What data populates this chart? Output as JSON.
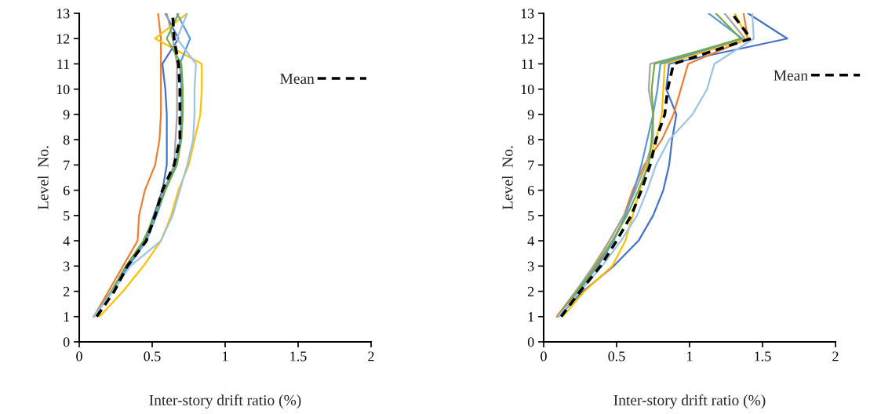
{
  "chart_data": [
    {
      "type": "line",
      "xlabel": "Inter-story drift ratio (%)",
      "ylabel": "Level  No.",
      "xlim": [
        0,
        2
      ],
      "xticks": [
        0,
        0.5,
        1,
        1.5,
        2
      ],
      "ylim": [
        0,
        13
      ],
      "yticks": [
        0,
        1,
        2,
        3,
        4,
        5,
        6,
        7,
        8,
        9,
        10,
        11,
        12,
        13
      ],
      "grid": false,
      "legend": "right",
      "marker": "none",
      "series": [
        {
          "color": "#4472c4",
          "x": [
            0.1,
            0.22,
            0.33,
            0.45,
            0.51,
            0.57,
            0.6,
            0.6,
            0.6,
            0.59,
            0.57,
            0.68,
            0.59
          ],
          "values": [
            1,
            2,
            3,
            4,
            5,
            6,
            7,
            8,
            9,
            10,
            11,
            12,
            13
          ]
        },
        {
          "color": "#ed7d31",
          "x": [
            0.1,
            0.2,
            0.3,
            0.4,
            0.41,
            0.45,
            0.52,
            0.55,
            0.56,
            0.56,
            0.56,
            0.56,
            0.54
          ],
          "values": [
            1,
            2,
            3,
            4,
            5,
            6,
            7,
            8,
            9,
            10,
            11,
            12,
            13
          ]
        },
        {
          "color": "#a5a5a5",
          "x": [
            0.1,
            0.22,
            0.32,
            0.44,
            0.52,
            0.58,
            0.65,
            0.66,
            0.67,
            0.67,
            0.67,
            0.64,
            0.6
          ],
          "values": [
            1,
            2,
            3,
            4,
            5,
            6,
            7,
            8,
            9,
            10,
            11,
            12,
            13
          ]
        },
        {
          "color": "#ffc000",
          "x": [
            0.14,
            0.3,
            0.44,
            0.56,
            0.63,
            0.68,
            0.75,
            0.79,
            0.83,
            0.84,
            0.84,
            0.52,
            0.74
          ],
          "values": [
            1,
            2,
            3,
            4,
            5,
            6,
            7,
            8,
            9,
            10,
            11,
            12,
            13
          ]
        },
        {
          "color": "#5b9bd5",
          "x": [
            0.1,
            0.23,
            0.34,
            0.46,
            0.53,
            0.59,
            0.66,
            0.69,
            0.7,
            0.7,
            0.69,
            0.76,
            0.67
          ],
          "values": [
            1,
            2,
            3,
            4,
            5,
            6,
            7,
            8,
            9,
            10,
            11,
            12,
            13
          ]
        },
        {
          "color": "#70ad47",
          "x": [
            0.1,
            0.22,
            0.32,
            0.44,
            0.52,
            0.59,
            0.67,
            0.7,
            0.71,
            0.71,
            0.7,
            0.6,
            0.68
          ],
          "values": [
            1,
            2,
            3,
            4,
            5,
            6,
            7,
            8,
            9,
            10,
            11,
            12,
            13
          ]
        },
        {
          "color": "#9dc3e6",
          "x": [
            0.1,
            0.23,
            0.35,
            0.56,
            0.64,
            0.69,
            0.74,
            0.78,
            0.79,
            0.79,
            0.8,
            0.67,
            0.74
          ],
          "values": [
            1,
            2,
            3,
            4,
            5,
            6,
            7,
            8,
            9,
            10,
            11,
            12,
            13
          ]
        },
        {
          "name": "Mean",
          "color": "#000000",
          "line_style": "dashed",
          "x": [
            0.12,
            0.24,
            0.33,
            0.46,
            0.52,
            0.57,
            0.65,
            0.69,
            0.69,
            0.69,
            0.68,
            0.65,
            0.64
          ],
          "values": [
            1,
            2,
            3,
            4,
            5,
            6,
            7,
            8,
            9,
            10,
            11,
            12,
            13
          ]
        }
      ]
    },
    {
      "type": "line",
      "xlabel": "Inter-story drift ratio (%)",
      "ylabel": "Level  No.",
      "xlim": [
        0,
        2
      ],
      "xticks": [
        0,
        0.5,
        1,
        1.5,
        2
      ],
      "ylim": [
        0,
        13
      ],
      "yticks": [
        0,
        1,
        2,
        3,
        4,
        5,
        6,
        7,
        8,
        9,
        10,
        11,
        12,
        13
      ],
      "grid": false,
      "legend": "right",
      "marker": "none",
      "series": [
        {
          "color": "#4472c4",
          "x": [
            0.1,
            0.27,
            0.48,
            0.65,
            0.75,
            0.82,
            0.86,
            0.88,
            0.91,
            0.84,
            0.86,
            1.67,
            1.4
          ],
          "values": [
            1,
            2,
            3,
            4,
            5,
            6,
            7,
            8,
            9,
            10,
            11,
            12,
            13
          ]
        },
        {
          "color": "#ed7d31",
          "x": [
            0.09,
            0.22,
            0.35,
            0.45,
            0.55,
            0.61,
            0.69,
            0.81,
            0.89,
            0.94,
            0.99,
            1.4,
            1.37
          ],
          "values": [
            1,
            2,
            3,
            4,
            5,
            6,
            7,
            8,
            9,
            10,
            11,
            12,
            13
          ]
        },
        {
          "color": "#a5a5a5",
          "x": [
            0.1,
            0.22,
            0.34,
            0.45,
            0.55,
            0.63,
            0.7,
            0.75,
            0.75,
            0.72,
            0.73,
            1.38,
            1.24
          ],
          "values": [
            1,
            2,
            3,
            4,
            5,
            6,
            7,
            8,
            9,
            10,
            11,
            12,
            13
          ]
        },
        {
          "color": "#ffc000",
          "x": [
            0.13,
            0.28,
            0.47,
            0.56,
            0.61,
            0.66,
            0.71,
            0.77,
            0.81,
            0.82,
            0.83,
            1.4,
            1.31
          ],
          "values": [
            1,
            2,
            3,
            4,
            5,
            6,
            7,
            8,
            9,
            10,
            11,
            12,
            13
          ]
        },
        {
          "color": "#5b9bd5",
          "x": [
            0.1,
            0.24,
            0.37,
            0.48,
            0.56,
            0.62,
            0.67,
            0.71,
            0.75,
            0.78,
            0.8,
            1.36,
            1.13
          ],
          "values": [
            1,
            2,
            3,
            4,
            5,
            6,
            7,
            8,
            9,
            10,
            11,
            12,
            13
          ]
        },
        {
          "color": "#70ad47",
          "x": [
            0.1,
            0.23,
            0.36,
            0.47,
            0.57,
            0.65,
            0.72,
            0.74,
            0.75,
            0.74,
            0.76,
            1.35,
            1.18
          ],
          "values": [
            1,
            2,
            3,
            4,
            5,
            6,
            7,
            8,
            9,
            10,
            11,
            12,
            13
          ]
        },
        {
          "color": "#9dc3e6",
          "x": [
            0.1,
            0.25,
            0.4,
            0.53,
            0.64,
            0.71,
            0.77,
            0.86,
            1.02,
            1.12,
            1.17,
            1.44,
            1.43
          ],
          "values": [
            1,
            2,
            3,
            4,
            5,
            6,
            7,
            8,
            9,
            10,
            11,
            12,
            13
          ]
        },
        {
          "name": "Mean",
          "color": "#000000",
          "line_style": "dashed",
          "x": [
            0.12,
            0.25,
            0.39,
            0.5,
            0.6,
            0.67,
            0.73,
            0.77,
            0.83,
            0.85,
            0.89,
            1.42,
            1.29
          ],
          "values": [
            1,
            2,
            3,
            4,
            5,
            6,
            7,
            8,
            9,
            10,
            11,
            12,
            13
          ]
        }
      ]
    }
  ]
}
